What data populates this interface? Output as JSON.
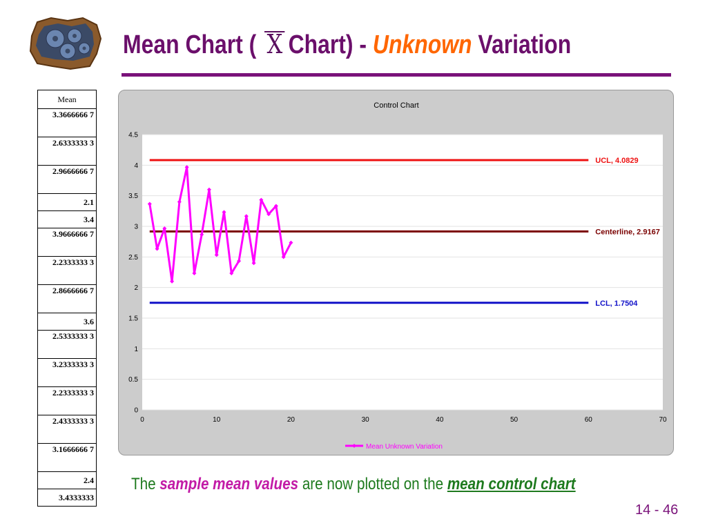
{
  "header": {
    "title_pre": "Mean Chart (",
    "title_symbol": "X",
    "title_mid": "Chart) -",
    "title_highlight": "Unknown",
    "title_post": "Variation"
  },
  "logo": {
    "icon": "gears-in-wall-icon"
  },
  "table": {
    "header": "Mean",
    "rows": [
      "3.3666666 7",
      "2.6333333 3",
      "2.9666666 7",
      "2.1",
      "3.4",
      "3.9666666 7",
      "2.2333333 3",
      "2.8666666 7",
      "3.6",
      "2.5333333 3",
      "3.2333333 3",
      "2.2333333 3",
      "2.4333333 3",
      "3.1666666 7",
      "2.4",
      "3.4333333"
    ]
  },
  "chart_data": {
    "type": "line",
    "title": "Control Chart",
    "xlim": [
      0,
      70
    ],
    "ylim": [
      0,
      4.5
    ],
    "x_ticks": [
      0,
      10,
      20,
      30,
      40,
      50,
      60,
      70
    ],
    "y_ticks": [
      0,
      0.5,
      1,
      1.5,
      2,
      2.5,
      3,
      3.5,
      4,
      4.5
    ],
    "grid": "horizontal",
    "legend_position": "bottom",
    "series": [
      {
        "name": "Mean Unknown Variation",
        "color": "#ff00ff",
        "x": [
          1,
          2,
          3,
          4,
          5,
          6,
          7,
          8,
          9,
          10,
          11,
          12,
          13,
          14,
          15,
          16,
          17,
          18,
          19,
          20
        ],
        "values": [
          3.3667,
          2.6333,
          2.9667,
          2.1,
          3.4,
          3.9667,
          2.2333,
          2.8667,
          3.6,
          2.5333,
          3.2333,
          2.2333,
          2.4333,
          3.1667,
          2.4,
          3.4333,
          3.2,
          3.3333,
          2.5,
          2.7333
        ]
      }
    ],
    "control_lines": [
      {
        "label": "UCL, 4.0829",
        "value": 4.0829,
        "x_range": [
          1,
          60
        ],
        "color": "#ee1111"
      },
      {
        "label": "Centerline, 2.9167",
        "value": 2.9167,
        "x_range": [
          1,
          60
        ],
        "color": "#7a0000"
      },
      {
        "label": "LCL, 1.7504",
        "value": 1.7504,
        "x_range": [
          1,
          60
        ],
        "color": "#1010c8"
      }
    ]
  },
  "caption": {
    "pre": "The",
    "em1": "sample mean values",
    "mid": "are now plotted on the",
    "em2": "mean control chart"
  },
  "page_number": "14 - 46"
}
